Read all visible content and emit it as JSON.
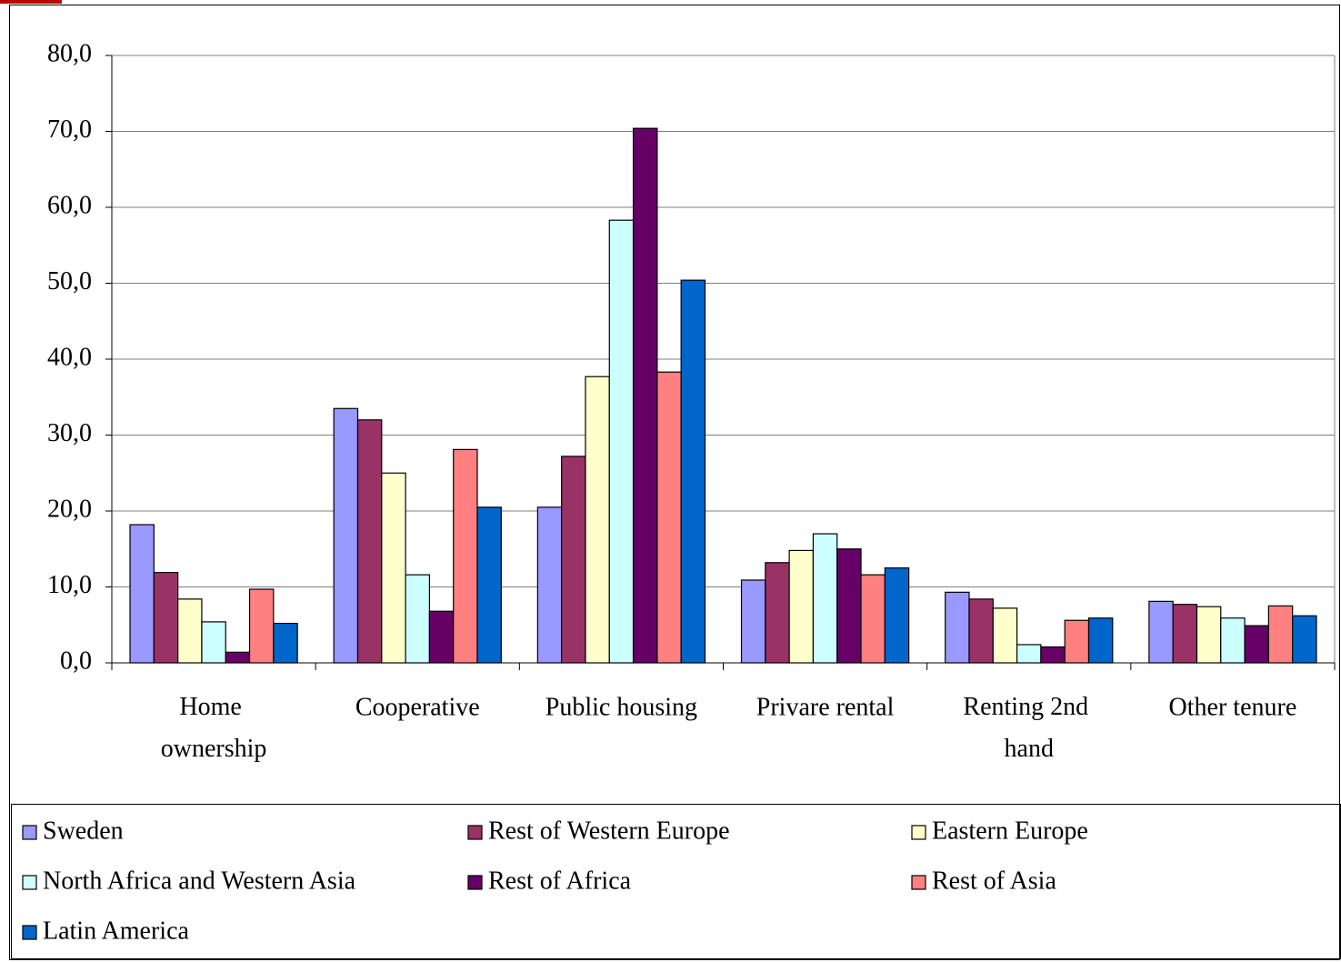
{
  "chart_data": {
    "type": "bar",
    "categories": [
      "Home ownership",
      "Cooperative",
      "Public housing",
      "Privare rental",
      "Renting 2nd hand",
      "Other tenure"
    ],
    "series": [
      {
        "name": "Sweden",
        "color": "#9999ff",
        "values": [
          18.2,
          33.5,
          20.5,
          10.9,
          9.3,
          8.1
        ]
      },
      {
        "name": "Rest of Western Europe",
        "color": "#993366",
        "values": [
          11.9,
          32.0,
          27.2,
          13.2,
          8.4,
          7.7
        ]
      },
      {
        "name": "Eastern Europe",
        "color": "#ffffcc",
        "values": [
          8.4,
          25.0,
          37.7,
          14.8,
          7.2,
          7.4
        ]
      },
      {
        "name": "North Africa and Western Asia",
        "color": "#ccffff",
        "values": [
          5.4,
          11.6,
          58.3,
          17.0,
          2.4,
          5.9
        ]
      },
      {
        "name": "Rest of Africa",
        "color": "#660066",
        "values": [
          1.4,
          6.8,
          70.4,
          15.0,
          2.1,
          4.9
        ]
      },
      {
        "name": "Rest of Asia",
        "color": "#ff8080",
        "values": [
          9.7,
          28.1,
          38.3,
          11.6,
          5.6,
          7.5
        ]
      },
      {
        "name": "Latin America",
        "color": "#0066cc",
        "values": [
          5.2,
          20.5,
          50.4,
          12.5,
          5.9,
          6.2
        ]
      }
    ],
    "ylim": [
      0,
      80
    ],
    "yticks": [
      {
        "value": 0,
        "label": "0,0"
      },
      {
        "value": 10,
        "label": "10,0"
      },
      {
        "value": 20,
        "label": "20,0"
      },
      {
        "value": 30,
        "label": "30,0"
      },
      {
        "value": 40,
        "label": "40,0"
      },
      {
        "value": 50,
        "label": "50,0"
      },
      {
        "value": 60,
        "label": "60,0"
      },
      {
        "value": 70,
        "label": "70,0"
      },
      {
        "value": 80,
        "label": "80,0"
      }
    ],
    "grid": true,
    "legend": "bottom"
  }
}
